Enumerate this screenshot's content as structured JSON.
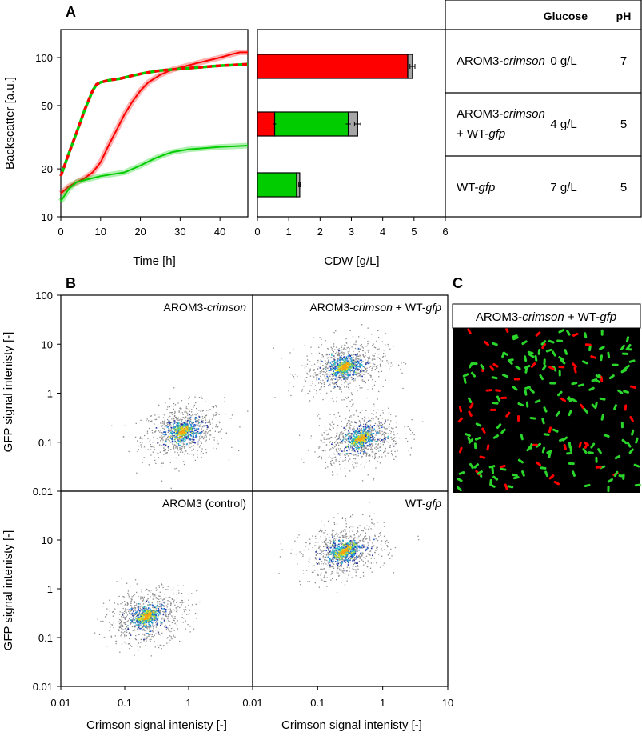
{
  "panel_labels": {
    "a": "A",
    "b": "B",
    "c": "C"
  },
  "colors": {
    "red": "#ff0000",
    "green": "#00cc00",
    "gray": "#a6a6a6",
    "black": "#000000"
  },
  "chart_data": [
    {
      "id": "growth",
      "type": "line",
      "yscale": "log",
      "xlabel": "Time [h]",
      "ylabel": "Backscatter [a.u.]",
      "xlim": [
        0,
        47
      ],
      "ylim": [
        10,
        150
      ],
      "xticks": [
        0,
        10,
        20,
        30,
        40
      ],
      "yticks": [
        10,
        20,
        50,
        100
      ],
      "series": [
        {
          "name": "AROM3-crimson",
          "style": "red",
          "x": [
            0,
            2,
            4,
            6,
            8,
            10,
            12,
            14,
            16,
            18,
            20,
            22,
            25,
            28,
            31,
            34,
            37,
            40,
            43,
            45,
            47
          ],
          "y": [
            14,
            15.5,
            16.5,
            17.5,
            19,
            22,
            28,
            35,
            44,
            53,
            62,
            70,
            78,
            84,
            88,
            92,
            96,
            100,
            105,
            108,
            108
          ]
        },
        {
          "name": "AROM3-crimson + WT-gfp",
          "style": "red-green-dashed",
          "x": [
            0,
            2,
            4,
            6,
            8,
            9,
            10,
            12,
            15,
            18,
            21,
            25,
            30,
            35,
            40,
            44,
            47
          ],
          "y": [
            18,
            25,
            34,
            47,
            62,
            68,
            70,
            72,
            74,
            77,
            80,
            83,
            85,
            87,
            89,
            90,
            91
          ]
        },
        {
          "name": "WT-gfp",
          "style": "green",
          "x": [
            0,
            2,
            4,
            6,
            8,
            10,
            13,
            16,
            20,
            24,
            28,
            32,
            36,
            40,
            44,
            47
          ],
          "y": [
            12.5,
            15,
            16.5,
            17,
            17.5,
            18,
            18.5,
            19,
            21,
            23.5,
            25.5,
            26.5,
            27,
            27.5,
            27.8,
            28
          ]
        }
      ]
    },
    {
      "id": "cdw",
      "type": "bar",
      "orientation": "horizontal",
      "stacked": true,
      "xlabel": "CDW [g/L]",
      "xlim": [
        0,
        6
      ],
      "xticks": [
        0,
        1,
        2,
        3,
        4,
        5,
        6
      ],
      "categories": [
        "AROM3-crimson",
        "AROM3-crimson + WT-gfp",
        "WT-gfp"
      ],
      "series": [
        {
          "name": "red",
          "color": "#ff0000",
          "values": [
            4.8,
            0.55,
            0
          ]
        },
        {
          "name": "green",
          "color": "#00cc00",
          "values": [
            0,
            2.35,
            1.25
          ]
        },
        {
          "name": "gray",
          "color": "#a6a6a6",
          "values": [
            0.15,
            0.3,
            0.1
          ]
        }
      ],
      "error": [
        0.08,
        0.1,
        0.03
      ]
    },
    {
      "id": "flow",
      "type": "scatter",
      "xscale": "log",
      "yscale": "log",
      "xlabel": "Crimson signal intenisty [-]",
      "ylabel": "GFP signal intenisty [-]",
      "xlim": [
        0.01,
        10
      ],
      "ylim": [
        0.01,
        100
      ],
      "xticks": [
        "0.01",
        "0.1",
        "1",
        "10"
      ],
      "yticks": [
        "0.01",
        "0.1",
        "1",
        "10",
        "100"
      ],
      "panels": [
        {
          "title": "AROM3-",
          "title_italic": "crimson",
          "title_after": "",
          "populations": [
            {
              "cx": 0.8,
              "cy": 0.17
            }
          ]
        },
        {
          "title": "AROM3-",
          "title_italic": "crimson",
          "title_after": " + WT-",
          "title_italic2": "gfp",
          "populations": [
            {
              "cx": 0.25,
              "cy": 3.5
            },
            {
              "cx": 0.45,
              "cy": 0.12
            }
          ]
        },
        {
          "title": "AROM3 (control)",
          "title_italic": "",
          "title_after": "",
          "populations": [
            {
              "cx": 0.22,
              "cy": 0.28
            }
          ]
        },
        {
          "title": "WT-",
          "title_italic": "gfp",
          "title_after": "",
          "populations": [
            {
              "cx": 0.25,
              "cy": 6
            }
          ]
        }
      ]
    }
  ],
  "table": {
    "header_glucose": "Glucose",
    "header_ph": "pH",
    "rows": [
      {
        "strain_a": "AROM3-",
        "strain_a_it": "crimson",
        "strain_b": "",
        "strain_b_it": "",
        "glucose": "0 g/L",
        "ph": "7"
      },
      {
        "strain_a": "AROM3-",
        "strain_a_it": "crimson",
        "strain_b": "+ WT-",
        "strain_b_it": "gfp",
        "glucose": "4 g/L",
        "ph": "5"
      },
      {
        "strain_a": "WT-",
        "strain_a_it": "gfp",
        "strain_b": "",
        "strain_b_it": "",
        "glucose": "7 g/L",
        "ph": "5"
      }
    ]
  },
  "microscopy": {
    "title_a": "AROM3-",
    "title_it": "crimson",
    "title_b": " + WT-",
    "title_it2": "gfp"
  }
}
